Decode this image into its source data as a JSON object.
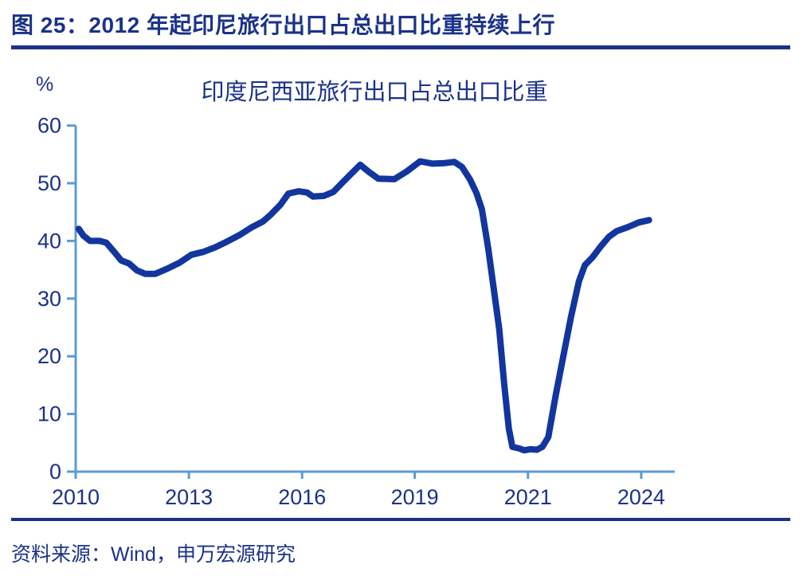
{
  "header": {
    "title": "图 25：2012 年起印尼旅行出口占总出口比重持续上行"
  },
  "source": {
    "text": "资料来源：Wind，申万宏源研究"
  },
  "colors": {
    "text_navy": "#1A3287",
    "line_blue": "#12359E",
    "axis_blue": "#5B9BD5"
  },
  "chart_data": {
    "type": "line",
    "title": "印度尼西亚旅行出口占总出口比重",
    "unit_label": "%",
    "series_name": "印度尼西亚旅行出口占总出口比重",
    "grid": false,
    "legend_position": "none",
    "ylim": [
      0,
      60
    ],
    "y_ticks": [
      0,
      10,
      20,
      30,
      40,
      50,
      60
    ],
    "x_tick_labels": [
      "2010",
      "2013",
      "2016",
      "2019",
      "2021",
      "2024"
    ],
    "x_tick_pos": [
      0.0,
      0.189,
      0.378,
      0.566,
      0.755,
      0.944
    ],
    "points": [
      [
        0.005,
        42.1
      ],
      [
        0.013,
        40.9
      ],
      [
        0.024,
        40.0
      ],
      [
        0.04,
        40.0
      ],
      [
        0.051,
        39.7
      ],
      [
        0.066,
        37.9
      ],
      [
        0.076,
        36.6
      ],
      [
        0.089,
        36.1
      ],
      [
        0.102,
        34.9
      ],
      [
        0.116,
        34.3
      ],
      [
        0.133,
        34.3
      ],
      [
        0.153,
        35.2
      ],
      [
        0.173,
        36.2
      ],
      [
        0.193,
        37.6
      ],
      [
        0.213,
        38.1
      ],
      [
        0.233,
        38.9
      ],
      [
        0.253,
        39.9
      ],
      [
        0.273,
        41.0
      ],
      [
        0.293,
        42.3
      ],
      [
        0.313,
        43.4
      ],
      [
        0.326,
        44.6
      ],
      [
        0.342,
        46.3
      ],
      [
        0.355,
        48.2
      ],
      [
        0.372,
        48.6
      ],
      [
        0.386,
        48.4
      ],
      [
        0.396,
        47.7
      ],
      [
        0.414,
        47.8
      ],
      [
        0.43,
        48.5
      ],
      [
        0.448,
        50.4
      ],
      [
        0.475,
        53.2
      ],
      [
        0.489,
        52.0
      ],
      [
        0.505,
        50.8
      ],
      [
        0.532,
        50.7
      ],
      [
        0.552,
        52.0
      ],
      [
        0.575,
        53.8
      ],
      [
        0.596,
        53.4
      ],
      [
        0.616,
        53.5
      ],
      [
        0.632,
        53.7
      ],
      [
        0.645,
        52.8
      ],
      [
        0.658,
        50.7
      ],
      [
        0.669,
        48.3
      ],
      [
        0.678,
        45.5
      ],
      [
        0.689,
        38.5
      ],
      [
        0.698,
        31.6
      ],
      [
        0.707,
        24.7
      ],
      [
        0.715,
        15.5
      ],
      [
        0.723,
        7.5
      ],
      [
        0.729,
        4.3
      ],
      [
        0.741,
        4.0
      ],
      [
        0.749,
        3.7
      ],
      [
        0.759,
        3.9
      ],
      [
        0.77,
        3.8
      ],
      [
        0.779,
        4.3
      ],
      [
        0.789,
        6.0
      ],
      [
        0.801,
        13.1
      ],
      [
        0.814,
        20.0
      ],
      [
        0.827,
        26.9
      ],
      [
        0.84,
        33.0
      ],
      [
        0.85,
        35.8
      ],
      [
        0.863,
        37.2
      ],
      [
        0.876,
        39.0
      ],
      [
        0.89,
        40.7
      ],
      [
        0.903,
        41.7
      ],
      [
        0.922,
        42.4
      ],
      [
        0.94,
        43.2
      ],
      [
        0.957,
        43.6
      ]
    ]
  }
}
